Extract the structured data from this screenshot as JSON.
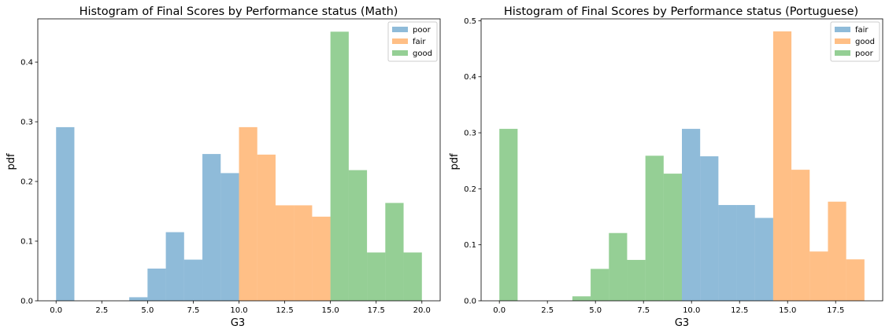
{
  "chart_data": [
    {
      "type": "bar",
      "title": "Histogram of Final Scores by Performance status (Math)",
      "xlabel": "G3",
      "ylabel": "pdf",
      "xlim": [
        -1,
        21
      ],
      "ylim": [
        0,
        0.4725
      ],
      "xticks": [
        0.0,
        2.5,
        5.0,
        7.5,
        10.0,
        12.5,
        15.0,
        17.5,
        20.0
      ],
      "xtick_labels": [
        "0.0",
        "2.5",
        "5.0",
        "7.5",
        "10.0",
        "12.5",
        "15.0",
        "17.5",
        "20.0"
      ],
      "yticks": [
        0,
        0.1,
        0.2,
        0.3,
        0.4
      ],
      "ytick_labels": [
        "0.0",
        "0.1",
        "0.2",
        "0.3",
        "0.4"
      ],
      "grid": false,
      "legend_position": "top-right",
      "series": [
        {
          "name": "poor",
          "color": "#1f77b4",
          "bins": [
            {
              "x0": 0.0,
              "x1": 1.0,
              "value": 0.291
            },
            {
              "x0": 4.0,
              "x1": 5.0,
              "value": 0.006
            },
            {
              "x0": 5.0,
              "x1": 6.0,
              "value": 0.054
            },
            {
              "x0": 6.0,
              "x1": 7.0,
              "value": 0.115
            },
            {
              "x0": 7.0,
              "x1": 8.0,
              "value": 0.069
            },
            {
              "x0": 8.0,
              "x1": 9.0,
              "value": 0.246
            },
            {
              "x0": 9.0,
              "x1": 10.0,
              "value": 0.214
            }
          ]
        },
        {
          "name": "fair",
          "color": "#ff7f0e",
          "bins": [
            {
              "x0": 10.0,
              "x1": 11.0,
              "value": 0.291
            },
            {
              "x0": 11.0,
              "x1": 12.0,
              "value": 0.245
            },
            {
              "x0": 12.0,
              "x1": 13.0,
              "value": 0.16
            },
            {
              "x0": 13.0,
              "x1": 14.0,
              "value": 0.16
            },
            {
              "x0": 14.0,
              "x1": 15.0,
              "value": 0.141
            }
          ]
        },
        {
          "name": "good",
          "color": "#2ca02c",
          "bins": [
            {
              "x0": 15.0,
              "x1": 16.0,
              "value": 0.451
            },
            {
              "x0": 16.0,
              "x1": 17.0,
              "value": 0.219
            },
            {
              "x0": 17.0,
              "x1": 18.0,
              "value": 0.081
            },
            {
              "x0": 18.0,
              "x1": 19.0,
              "value": 0.164
            },
            {
              "x0": 19.0,
              "x1": 20.0,
              "value": 0.081
            }
          ]
        }
      ]
    },
    {
      "type": "bar",
      "title": "Histogram of Final Scores by Performance status (Portuguese)",
      "xlabel": "G3",
      "ylabel": "pdf",
      "xlim": [
        -0.95,
        19.95
      ],
      "ylim": [
        0,
        0.5034
      ],
      "xticks": [
        0.0,
        2.5,
        5.0,
        7.5,
        10.0,
        12.5,
        15.0,
        17.5
      ],
      "xtick_labels": [
        "0.0",
        "2.5",
        "5.0",
        "7.5",
        "10.0",
        "12.5",
        "15.0",
        "17.5"
      ],
      "yticks": [
        0,
        0.1,
        0.2,
        0.3,
        0.4,
        0.5
      ],
      "ytick_labels": [
        "0.0",
        "0.1",
        "0.2",
        "0.3",
        "0.4",
        "0.5"
      ],
      "grid": false,
      "legend_position": "top-right",
      "series": [
        {
          "name": "fair",
          "color": "#1f77b4",
          "bins": [
            {
              "x0": 9.5,
              "x1": 10.45,
              "value": 0.307
            },
            {
              "x0": 10.45,
              "x1": 11.4,
              "value": 0.258
            },
            {
              "x0": 11.4,
              "x1": 12.35,
              "value": 0.171
            },
            {
              "x0": 12.35,
              "x1": 13.3,
              "value": 0.171
            },
            {
              "x0": 13.3,
              "x1": 14.25,
              "value": 0.148
            }
          ]
        },
        {
          "name": "good",
          "color": "#ff7f0e",
          "bins": [
            {
              "x0": 14.25,
              "x1": 15.2,
              "value": 0.481
            },
            {
              "x0": 15.2,
              "x1": 16.15,
              "value": 0.234
            },
            {
              "x0": 16.15,
              "x1": 17.1,
              "value": 0.088
            },
            {
              "x0": 17.1,
              "x1": 18.05,
              "value": 0.177
            },
            {
              "x0": 18.05,
              "x1": 19.0,
              "value": 0.074
            }
          ]
        },
        {
          "name": "poor",
          "color": "#2ca02c",
          "bins": [
            {
              "x0": 0.0,
              "x1": 0.95,
              "value": 0.307
            },
            {
              "x0": 3.8,
              "x1": 4.75,
              "value": 0.008
            },
            {
              "x0": 4.75,
              "x1": 5.7,
              "value": 0.057
            },
            {
              "x0": 5.7,
              "x1": 6.65,
              "value": 0.121
            },
            {
              "x0": 6.65,
              "x1": 7.6,
              "value": 0.073
            },
            {
              "x0": 7.6,
              "x1": 8.55,
              "value": 0.259
            },
            {
              "x0": 8.55,
              "x1": 9.5,
              "value": 0.227
            }
          ]
        }
      ]
    }
  ]
}
